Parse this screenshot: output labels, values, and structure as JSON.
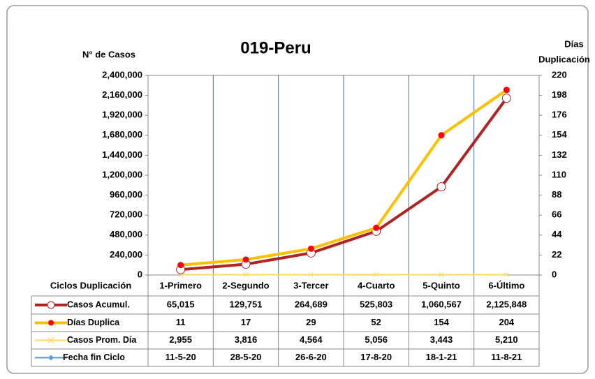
{
  "chart_data": {
    "type": "line",
    "title": "019-Peru",
    "y_label": "N° de Casos",
    "y2_label": [
      "Días",
      "Duplicación"
    ],
    "table_header": "Ciclos Duplicación",
    "categories": [
      "1-Primero",
      "2-Segundo",
      "3-Tercer",
      "4-Cuarto",
      "5-Quinto",
      "6-Último"
    ],
    "ylim": [
      0,
      2400000
    ],
    "yticks": [
      0,
      {
        "value": 240000,
        "label": "240,000"
      },
      {
        "value": 480000,
        "label": "480,000"
      },
      {
        "value": 720000,
        "label": "720,000"
      },
      {
        "value": 960000,
        "label": "960,000"
      },
      {
        "value": 1200000,
        "label": "1,200,000"
      },
      {
        "value": 1440000,
        "label": "1,440,000"
      },
      {
        "value": 1680000,
        "label": "1,680,000"
      },
      {
        "value": 1920000,
        "label": "1,920,000"
      },
      {
        "value": 2160000,
        "label": "2,160,000"
      },
      {
        "value": 2400000,
        "label": "2,400,000"
      }
    ],
    "y2lim": [
      0,
      220
    ],
    "y2ticks": [
      0,
      22,
      44,
      66,
      88,
      110,
      132,
      154,
      176,
      198,
      220
    ],
    "series": [
      {
        "name": "Casos Acumul.",
        "color": "#b22222",
        "values": [
          65015,
          129751,
          264689,
          525803,
          1060567,
          2125848
        ],
        "value_labels": [
          "65,015",
          "129,751",
          "264,689",
          "525,803",
          "1,060,567",
          "2,125,848"
        ]
      },
      {
        "name": "Días Duplica",
        "color": "#ffc000",
        "axis": "y2",
        "values": [
          11,
          17,
          29,
          52,
          154,
          204
        ]
      },
      {
        "name": "Casos Prom. Día",
        "color": "#ffd966",
        "values": [
          2955,
          3816,
          4564,
          5056,
          3443,
          5210
        ],
        "value_labels": [
          "2,955",
          "3,816",
          "4,564",
          "5,056",
          "3,443",
          "5,210"
        ]
      },
      {
        "name": "Fecha fin Ciclo",
        "color": "#5b9bd5",
        "values": [
          "11-5-20",
          "28-5-20",
          "26-6-20",
          "17-8-20",
          "18-1-21",
          "11-8-21"
        ]
      }
    ]
  }
}
